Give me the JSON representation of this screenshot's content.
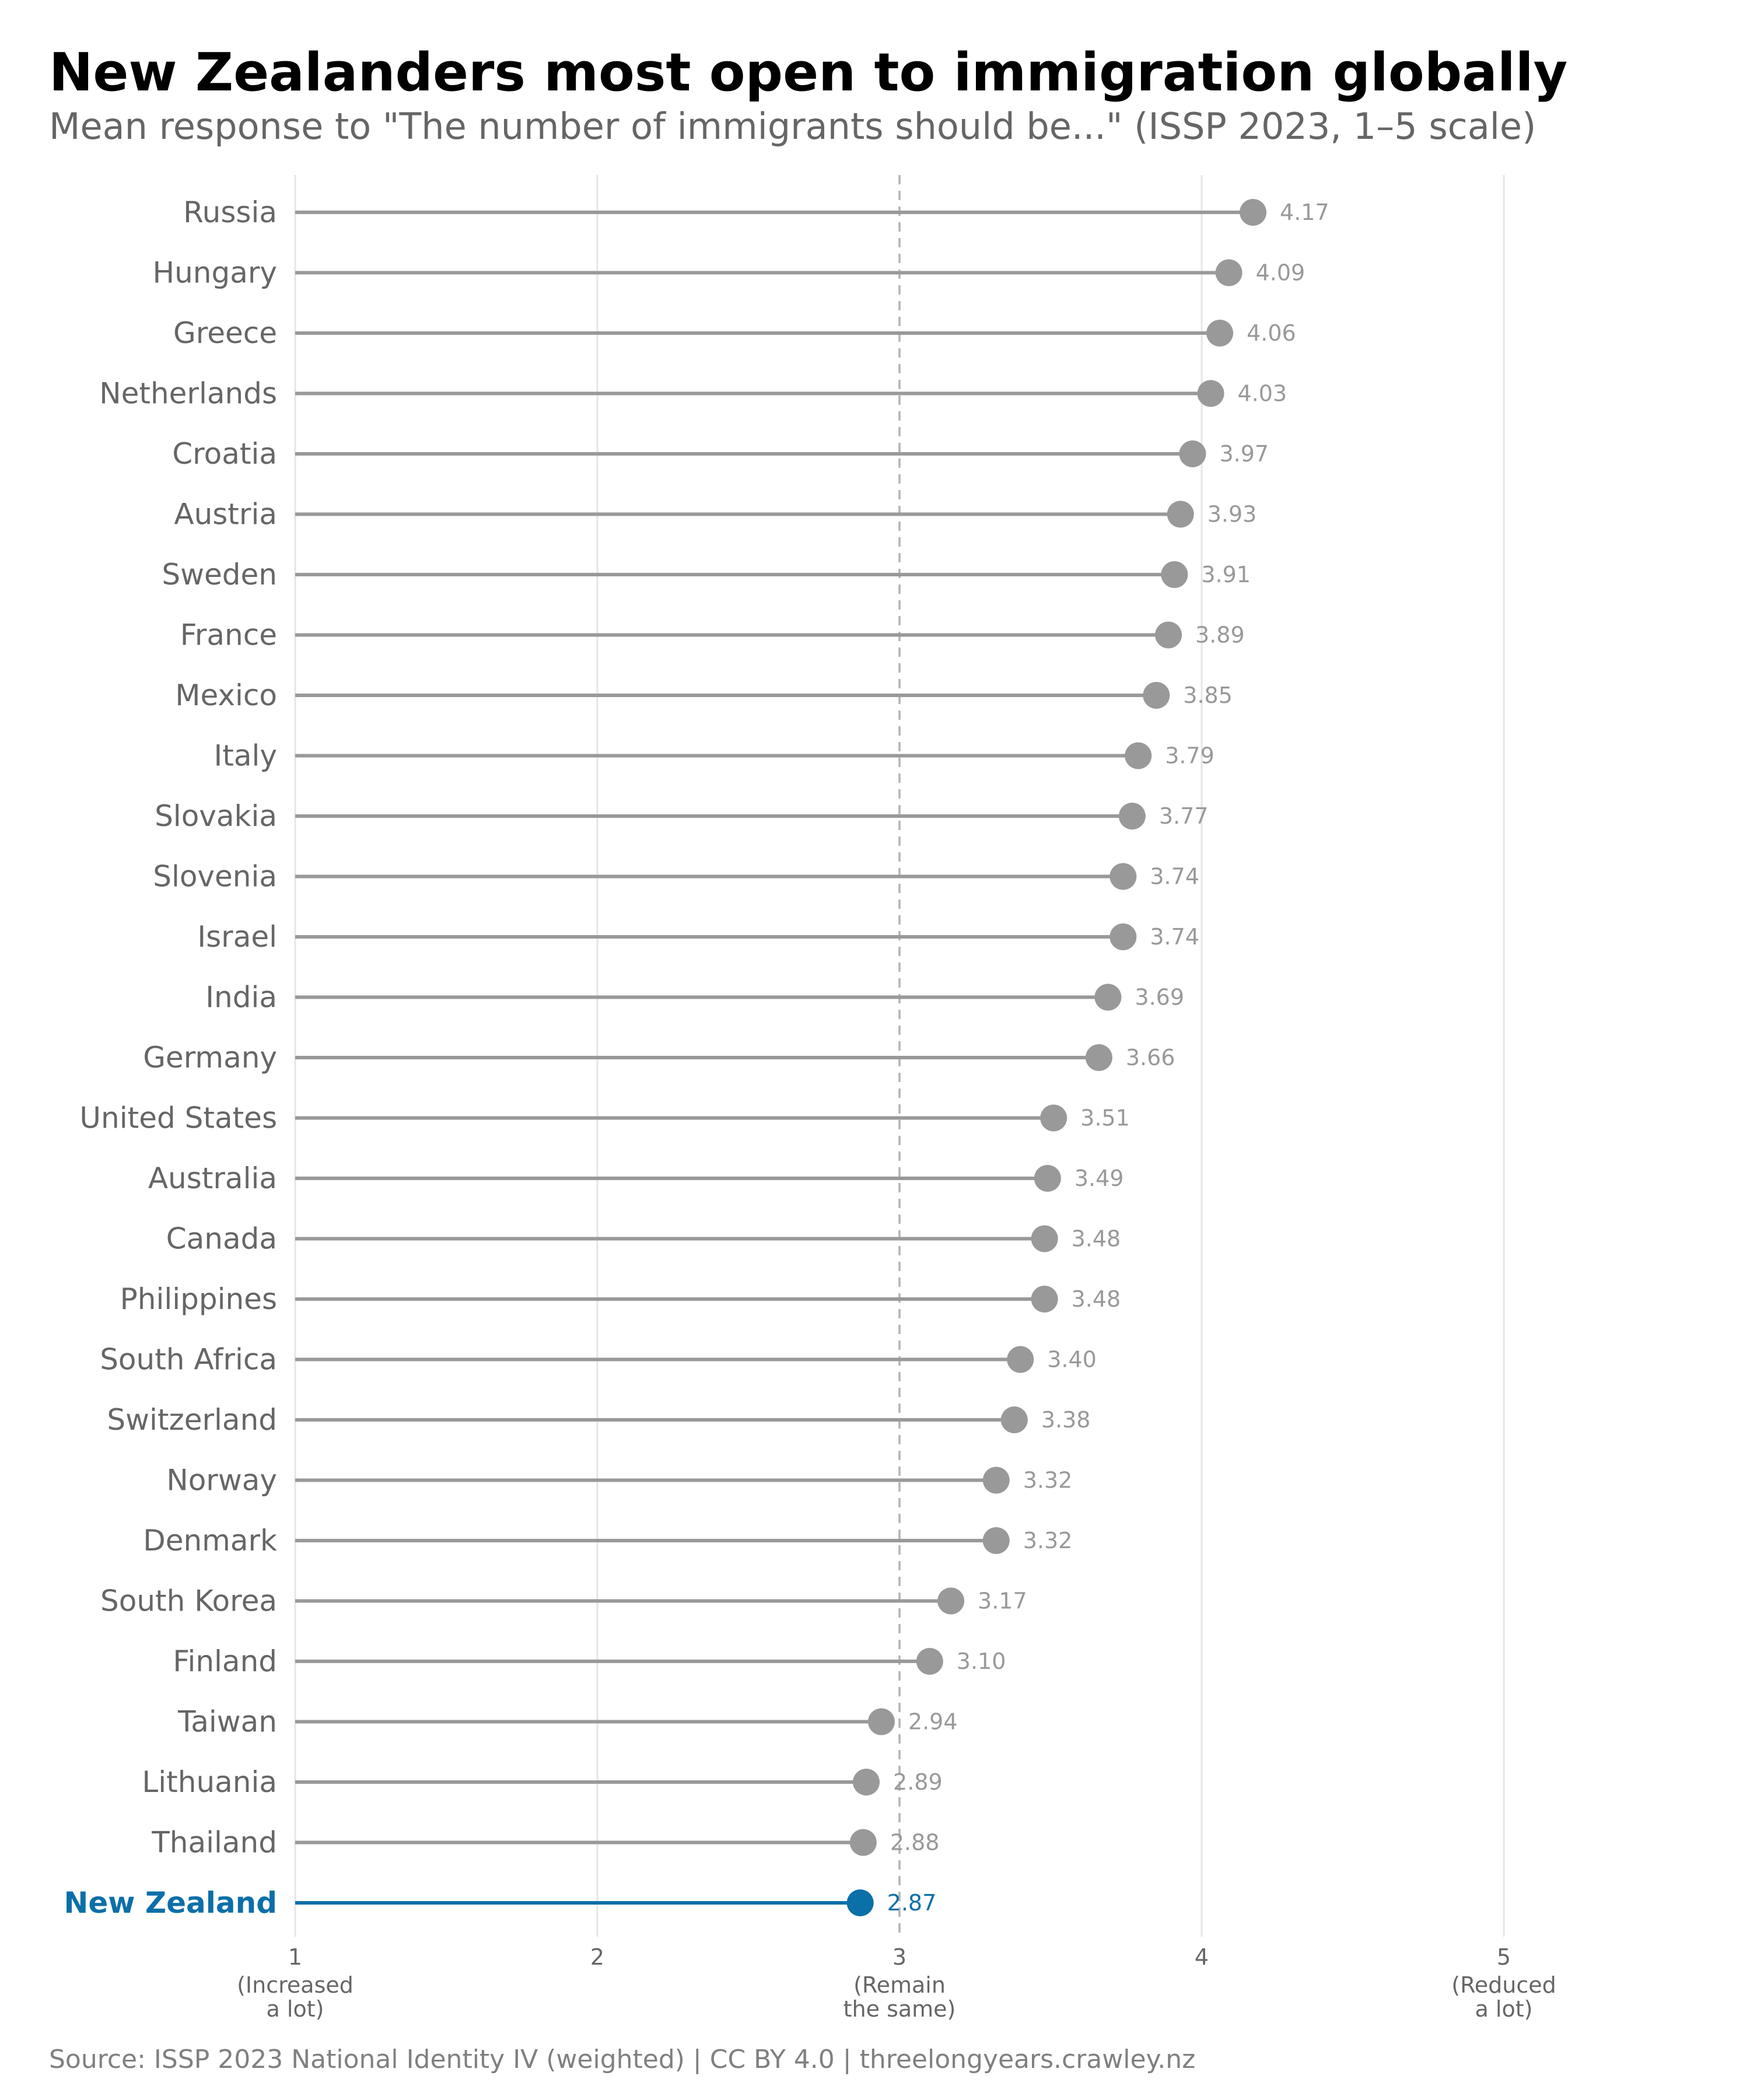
{
  "title": "New Zealanders most open to immigration globally",
  "subtitle": "Mean response to \"The number of immigrants should be...\" (ISSP 2023, 1–5 scale)",
  "source": "Source: ISSP 2023 National Identity IV (weighted) | CC BY 4.0 | threelongyears.crawley.nz",
  "colors": {
    "default": "#999999",
    "highlight": "#0b6fa8",
    "label_text": "#666666",
    "value_text": "#999999",
    "grid": "#e6e6e6",
    "reference": "#b3b3b3"
  },
  "chart_data": {
    "type": "lollipop",
    "title": "New Zealanders most open to immigration globally",
    "subtitle": "Mean response to \"The number of immigrants should be...\" (ISSP 2023, 1–5 scale)",
    "xlim": [
      1,
      5
    ],
    "baseline": 1,
    "reference_line": 3,
    "grid": true,
    "highlight": "New Zealand",
    "x_ticks": [
      {
        "value": 1,
        "label": "1",
        "sublabel": [
          "(Increased",
          "a lot)"
        ]
      },
      {
        "value": 2,
        "label": "2",
        "sublabel": []
      },
      {
        "value": 3,
        "label": "3",
        "sublabel": [
          "(Remain",
          "the same)"
        ]
      },
      {
        "value": 4,
        "label": "4",
        "sublabel": []
      },
      {
        "value": 5,
        "label": "5",
        "sublabel": [
          "(Reduced",
          "a lot)"
        ]
      }
    ],
    "points": [
      {
        "country": "Russia",
        "value": 4.17,
        "label": "4.17"
      },
      {
        "country": "Hungary",
        "value": 4.09,
        "label": "4.09"
      },
      {
        "country": "Greece",
        "value": 4.06,
        "label": "4.06"
      },
      {
        "country": "Netherlands",
        "value": 4.03,
        "label": "4.03"
      },
      {
        "country": "Croatia",
        "value": 3.97,
        "label": "3.97"
      },
      {
        "country": "Austria",
        "value": 3.93,
        "label": "3.93"
      },
      {
        "country": "Sweden",
        "value": 3.91,
        "label": "3.91"
      },
      {
        "country": "France",
        "value": 3.89,
        "label": "3.89"
      },
      {
        "country": "Mexico",
        "value": 3.85,
        "label": "3.85"
      },
      {
        "country": "Italy",
        "value": 3.79,
        "label": "3.79"
      },
      {
        "country": "Slovakia",
        "value": 3.77,
        "label": "3.77"
      },
      {
        "country": "Slovenia",
        "value": 3.74,
        "label": "3.74"
      },
      {
        "country": "Israel",
        "value": 3.74,
        "label": "3.74"
      },
      {
        "country": "India",
        "value": 3.69,
        "label": "3.69"
      },
      {
        "country": "Germany",
        "value": 3.66,
        "label": "3.66"
      },
      {
        "country": "United States",
        "value": 3.51,
        "label": "3.51"
      },
      {
        "country": "Australia",
        "value": 3.49,
        "label": "3.49"
      },
      {
        "country": "Canada",
        "value": 3.48,
        "label": "3.48"
      },
      {
        "country": "Philippines",
        "value": 3.48,
        "label": "3.48"
      },
      {
        "country": "South Africa",
        "value": 3.4,
        "label": "3.40"
      },
      {
        "country": "Switzerland",
        "value": 3.38,
        "label": "3.38"
      },
      {
        "country": "Norway",
        "value": 3.32,
        "label": "3.32"
      },
      {
        "country": "Denmark",
        "value": 3.32,
        "label": "3.32"
      },
      {
        "country": "South Korea",
        "value": 3.17,
        "label": "3.17"
      },
      {
        "country": "Finland",
        "value": 3.1,
        "label": "3.10"
      },
      {
        "country": "Taiwan",
        "value": 2.94,
        "label": "2.94"
      },
      {
        "country": "Lithuania",
        "value": 2.89,
        "label": "2.89"
      },
      {
        "country": "Thailand",
        "value": 2.88,
        "label": "2.88"
      },
      {
        "country": "New Zealand",
        "value": 2.87,
        "label": "2.87"
      }
    ]
  }
}
